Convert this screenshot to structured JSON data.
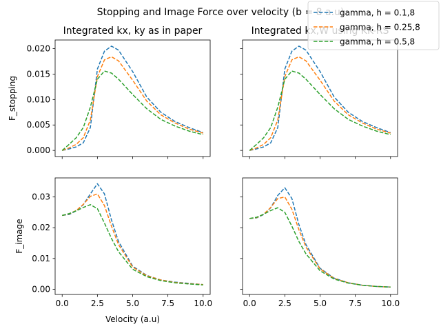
{
  "figure": {
    "suptitle": "Stopping and Image Force over velocity (b = 8 a.u)"
  },
  "legend": {
    "placement": "top-right, overlapping the upper-right panel",
    "entries": [
      {
        "label": "gamma, h = 0.1,8",
        "color": "#1f77b4"
      },
      {
        "label": "gamma, h = 0.25,8",
        "color": "#ff7f0e"
      },
      {
        "label": "gamma, h = 0.5,8",
        "color": "#2ca02c"
      }
    ]
  },
  "chart_data": [
    {
      "type": "line",
      "panel": "top-left",
      "title": "Integrated kx, ky as in paper",
      "ylabel": "F_stopping",
      "xlabel": "",
      "xlim": [
        -0.5,
        10.5
      ],
      "ylim": [
        -0.0012,
        0.0217
      ],
      "xticks": [
        0.0,
        2.5,
        5.0,
        7.5,
        10.0
      ],
      "xtick_labels_visible": false,
      "yticks": [
        0.0,
        0.005,
        0.01,
        0.015,
        0.02
      ],
      "ytick_labels": [
        "0.000",
        "0.005",
        "0.010",
        "0.015",
        "0.020"
      ],
      "ytick_labels_visible": true,
      "line_style": "dashed",
      "series": [
        {
          "name": "gamma, h = 0.1,8",
          "color": "#1f77b4",
          "x": [
            0.0,
            0.5,
            1.0,
            1.5,
            2.0,
            2.5,
            3.0,
            3.5,
            4.0,
            5.0,
            6.0,
            7.0,
            8.0,
            9.0,
            10.0
          ],
          "y": [
            0.0,
            0.0003,
            0.0007,
            0.0015,
            0.0045,
            0.016,
            0.0195,
            0.0205,
            0.0197,
            0.0155,
            0.0105,
            0.0075,
            0.0057,
            0.0045,
            0.0035
          ]
        },
        {
          "name": "gamma, h = 0.25,8",
          "color": "#ff7f0e",
          "x": [
            0.0,
            0.5,
            1.0,
            1.5,
            2.0,
            2.5,
            3.0,
            3.5,
            4.0,
            5.0,
            6.0,
            7.0,
            8.0,
            9.0,
            10.0
          ],
          "y": [
            0.0,
            0.0005,
            0.0012,
            0.0025,
            0.006,
            0.0145,
            0.0178,
            0.0184,
            0.0176,
            0.0138,
            0.0097,
            0.007,
            0.0054,
            0.0042,
            0.0034
          ]
        },
        {
          "name": "gamma, h = 0.5,8",
          "color": "#2ca02c",
          "x": [
            0.0,
            0.5,
            1.0,
            1.5,
            2.0,
            2.5,
            3.0,
            3.5,
            4.0,
            5.0,
            6.0,
            7.0,
            8.0,
            9.0,
            10.0
          ],
          "y": [
            0.0,
            0.0012,
            0.0025,
            0.0045,
            0.0085,
            0.014,
            0.0156,
            0.0152,
            0.014,
            0.011,
            0.0082,
            0.0061,
            0.0048,
            0.0038,
            0.0031
          ]
        }
      ]
    },
    {
      "type": "line",
      "panel": "top-right",
      "title": "Integrated kx,W using KK-RS",
      "ylabel": "",
      "xlabel": "",
      "xlim": [
        -0.5,
        10.5
      ],
      "ylim": [
        -0.0012,
        0.0217
      ],
      "xticks": [
        0.0,
        2.5,
        5.0,
        7.5,
        10.0
      ],
      "xtick_labels_visible": false,
      "yticks": [
        0.0,
        0.005,
        0.01,
        0.015,
        0.02
      ],
      "ytick_labels_visible": false,
      "line_style": "dashed",
      "series": [
        {
          "name": "gamma, h = 0.1,8",
          "color": "#1f77b4",
          "x": [
            0.0,
            0.5,
            1.0,
            1.5,
            2.0,
            2.5,
            3.0,
            3.5,
            4.0,
            5.0,
            6.0,
            7.0,
            8.0,
            9.0,
            10.0
          ],
          "y": [
            0.0,
            0.0003,
            0.0007,
            0.0015,
            0.0045,
            0.016,
            0.0195,
            0.0205,
            0.0197,
            0.0155,
            0.0105,
            0.0075,
            0.0057,
            0.0045,
            0.0035
          ]
        },
        {
          "name": "gamma, h = 0.25,8",
          "color": "#ff7f0e",
          "x": [
            0.0,
            0.5,
            1.0,
            1.5,
            2.0,
            2.5,
            3.0,
            3.5,
            4.0,
            5.0,
            6.0,
            7.0,
            8.0,
            9.0,
            10.0
          ],
          "y": [
            0.0,
            0.0005,
            0.0012,
            0.0025,
            0.006,
            0.0145,
            0.0178,
            0.0184,
            0.0176,
            0.0138,
            0.0097,
            0.007,
            0.0054,
            0.0042,
            0.0034
          ]
        },
        {
          "name": "gamma, h = 0.5,8",
          "color": "#2ca02c",
          "x": [
            0.0,
            0.5,
            1.0,
            1.5,
            2.0,
            2.5,
            3.0,
            3.5,
            4.0,
            5.0,
            6.0,
            7.0,
            8.0,
            9.0,
            10.0
          ],
          "y": [
            0.0,
            0.0012,
            0.0025,
            0.0045,
            0.0085,
            0.014,
            0.0156,
            0.0152,
            0.014,
            0.011,
            0.0082,
            0.0061,
            0.0048,
            0.0038,
            0.0031
          ]
        }
      ]
    },
    {
      "type": "line",
      "panel": "bottom-left",
      "title": "",
      "ylabel": "F_image",
      "xlabel": "Velocity (a.u)",
      "xlim": [
        -0.5,
        10.5
      ],
      "ylim": [
        -0.0017,
        0.0362
      ],
      "xticks": [
        0.0,
        2.5,
        5.0,
        7.5,
        10.0
      ],
      "xtick_labels": [
        "0.0",
        "2.5",
        "5.0",
        "7.5",
        "10.0"
      ],
      "xtick_labels_visible": true,
      "yticks": [
        0.0,
        0.01,
        0.02,
        0.03
      ],
      "ytick_labels": [
        "0.00",
        "0.01",
        "0.02",
        "0.03"
      ],
      "ytick_labels_visible": true,
      "line_style": "dashed",
      "series": [
        {
          "name": "gamma, h = 0.1,8",
          "color": "#1f77b4",
          "x": [
            0.0,
            0.5,
            1.0,
            1.5,
            2.0,
            2.5,
            3.0,
            3.5,
            4.0,
            5.0,
            6.0,
            7.0,
            8.0,
            9.0,
            10.0
          ],
          "y": [
            0.024,
            0.0243,
            0.0255,
            0.0275,
            0.031,
            0.0343,
            0.031,
            0.0225,
            0.0155,
            0.0075,
            0.0045,
            0.003,
            0.0023,
            0.0019,
            0.0015
          ]
        },
        {
          "name": "gamma, h = 0.25,8",
          "color": "#ff7f0e",
          "x": [
            0.0,
            0.5,
            1.0,
            1.5,
            2.0,
            2.5,
            3.0,
            3.5,
            4.0,
            5.0,
            6.0,
            7.0,
            8.0,
            9.0,
            10.0
          ],
          "y": [
            0.024,
            0.0245,
            0.0256,
            0.0276,
            0.0302,
            0.031,
            0.0272,
            0.0205,
            0.0145,
            0.0072,
            0.0044,
            0.003,
            0.0022,
            0.0018,
            0.0015
          ]
        },
        {
          "name": "gamma, h = 0.5,8",
          "color": "#2ca02c",
          "x": [
            0.0,
            0.5,
            1.0,
            1.5,
            2.0,
            2.5,
            3.0,
            3.5,
            4.0,
            5.0,
            6.0,
            7.0,
            8.0,
            9.0,
            10.0
          ],
          "y": [
            0.024,
            0.0246,
            0.0255,
            0.0266,
            0.0275,
            0.0262,
            0.0215,
            0.0165,
            0.0122,
            0.0065,
            0.0041,
            0.0028,
            0.0021,
            0.0017,
            0.0014
          ]
        }
      ]
    },
    {
      "type": "line",
      "panel": "bottom-right",
      "title": "",
      "ylabel": "",
      "xlabel": "",
      "xlim": [
        -0.5,
        10.5
      ],
      "ylim": [
        -0.0017,
        0.0362
      ],
      "xticks": [
        0.0,
        2.5,
        5.0,
        7.5,
        10.0
      ],
      "xtick_labels": [
        "0.0",
        "2.5",
        "5.0",
        "7.5",
        "10.0"
      ],
      "xtick_labels_visible": true,
      "yticks": [
        0.0,
        0.01,
        0.02,
        0.03
      ],
      "ytick_labels_visible": false,
      "line_style": "dashed",
      "series": [
        {
          "name": "gamma, h = 0.1,8",
          "color": "#1f77b4",
          "x": [
            0.0,
            0.5,
            1.0,
            1.5,
            2.0,
            2.5,
            3.0,
            3.5,
            4.0,
            5.0,
            6.0,
            7.0,
            8.0,
            9.0,
            10.0
          ],
          "y": [
            0.023,
            0.0232,
            0.0243,
            0.0265,
            0.0305,
            0.033,
            0.0295,
            0.021,
            0.0145,
            0.0068,
            0.0036,
            0.0021,
            0.0013,
            0.0009,
            0.0007
          ]
        },
        {
          "name": "gamma, h = 0.25,8",
          "color": "#ff7f0e",
          "x": [
            0.0,
            0.5,
            1.0,
            1.5,
            2.0,
            2.5,
            3.0,
            3.5,
            4.0,
            5.0,
            6.0,
            7.0,
            8.0,
            9.0,
            10.0
          ],
          "y": [
            0.023,
            0.0233,
            0.0244,
            0.0266,
            0.0295,
            0.03,
            0.026,
            0.0193,
            0.0137,
            0.0066,
            0.0035,
            0.0021,
            0.0013,
            0.0009,
            0.0007
          ]
        },
        {
          "name": "gamma, h = 0.5,8",
          "color": "#2ca02c",
          "x": [
            0.0,
            0.5,
            1.0,
            1.5,
            2.0,
            2.5,
            3.0,
            3.5,
            4.0,
            5.0,
            6.0,
            7.0,
            8.0,
            9.0,
            10.0
          ],
          "y": [
            0.023,
            0.0234,
            0.0244,
            0.0256,
            0.0265,
            0.025,
            0.0205,
            0.0155,
            0.0115,
            0.006,
            0.0033,
            0.002,
            0.0013,
            0.0009,
            0.0007
          ]
        }
      ]
    }
  ]
}
